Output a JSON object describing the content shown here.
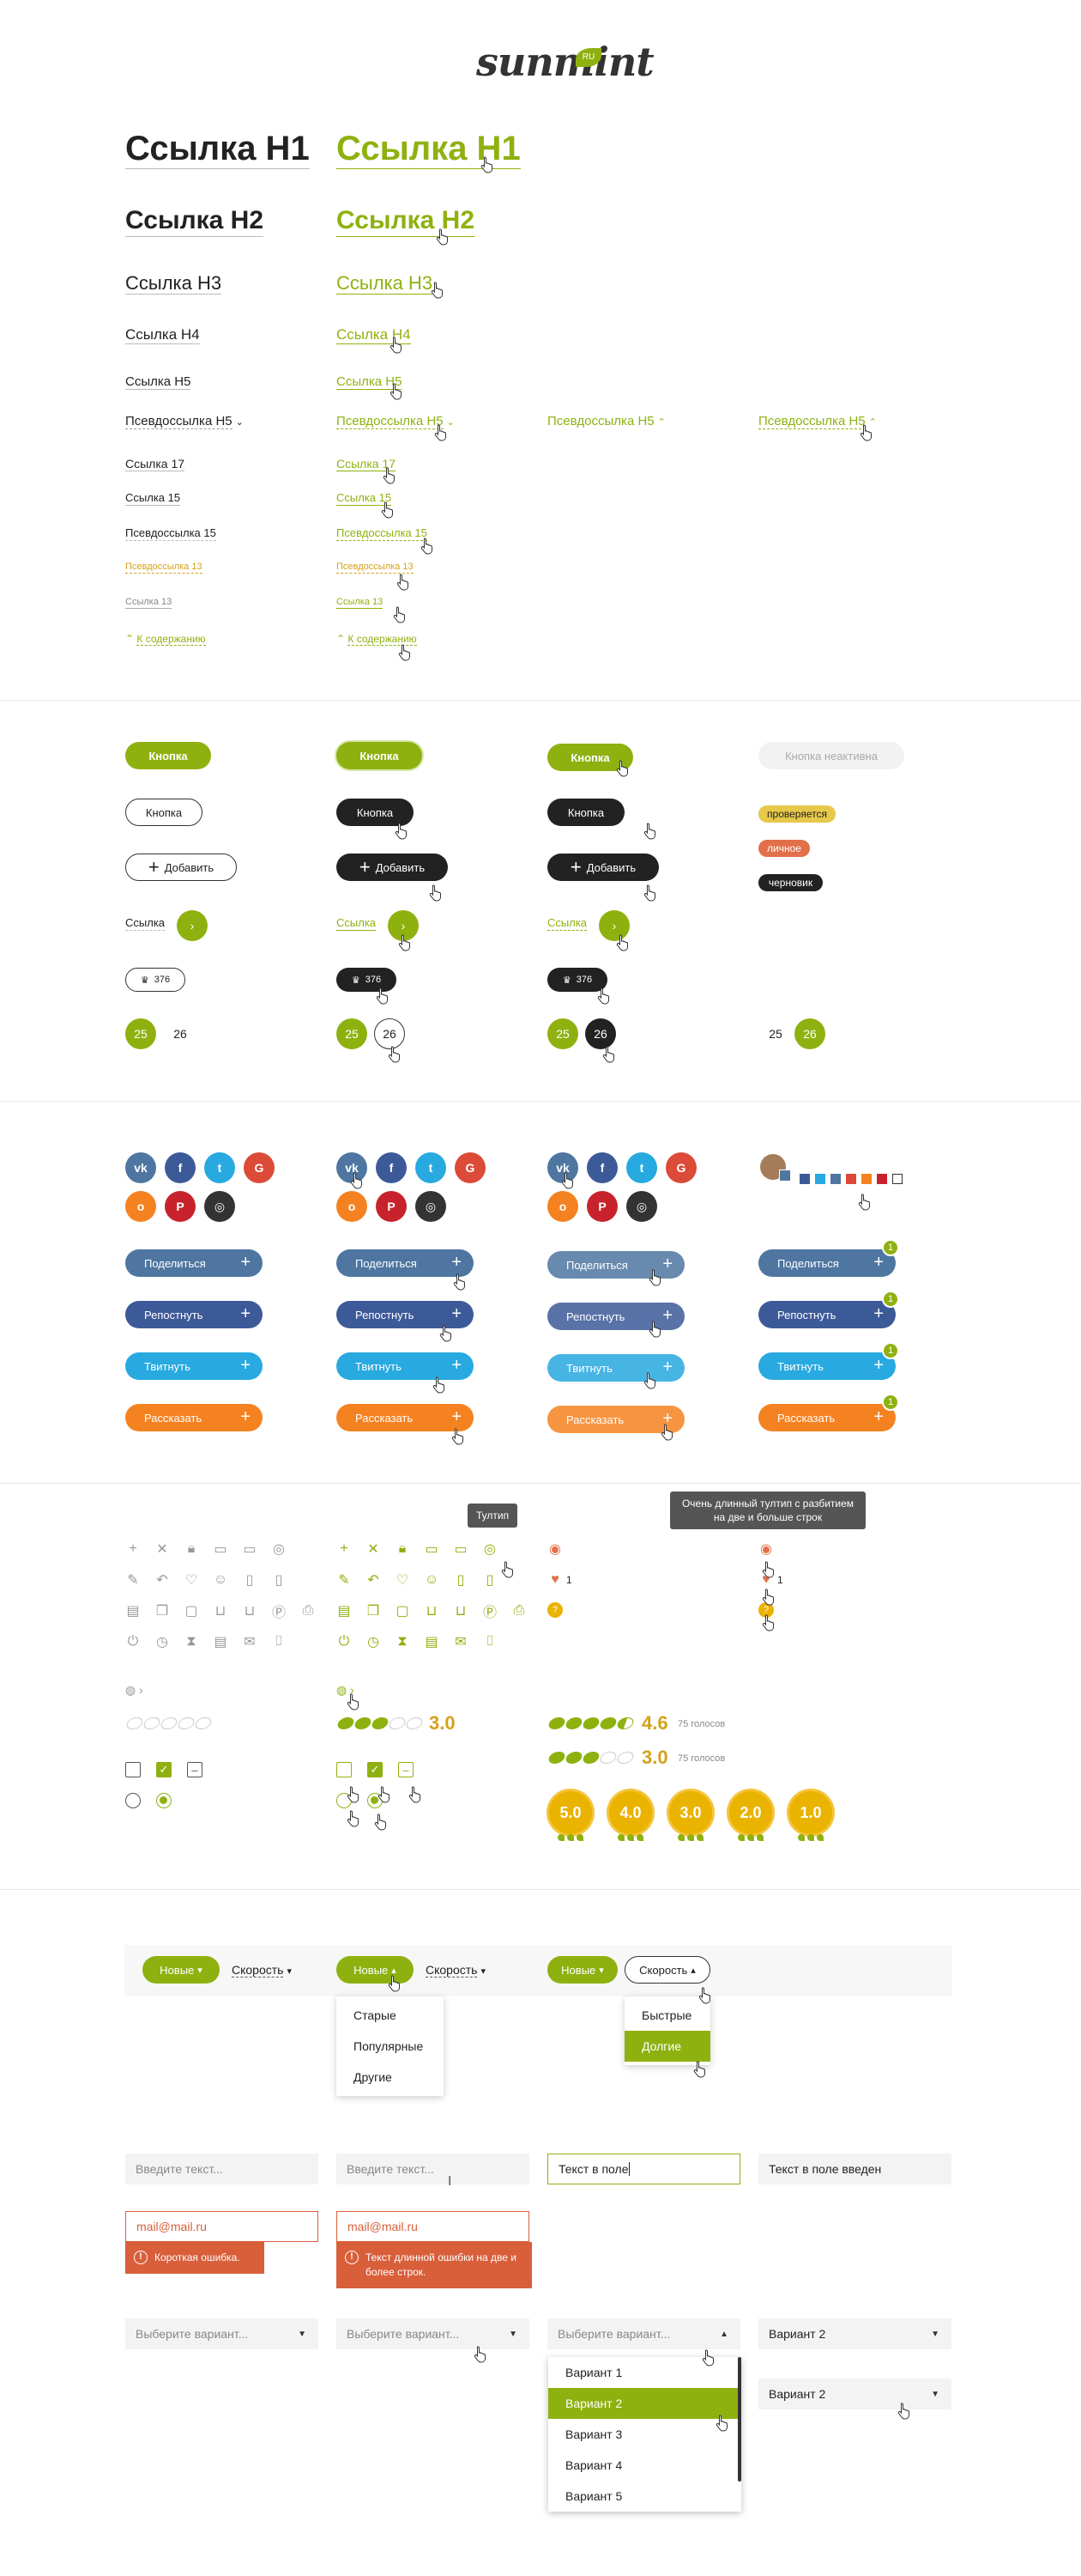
{
  "brand": {
    "logo": "sunmint",
    "logo_badge": "RU"
  },
  "typography": {
    "h1": "Ссылка H1",
    "h2": "Ссылка H2",
    "h3": "Ссылка H3",
    "h4": "Ссылка H4",
    "h5": "Ссылка H5",
    "pseudo_h5": "Псевдоссылка H5",
    "link17": "Ссылка 17",
    "link15": "Ссылка 15",
    "pseudo15": "Псевдоссылка 15",
    "pseudo13": "Псевдоссылка 13",
    "link13": "Ссылка 13",
    "toc": "К содержанию"
  },
  "buttons": {
    "button": "Кнопка",
    "button_disabled": "Кнопка неактивна",
    "add": "Добавить",
    "link": "Ссылка",
    "count": "376",
    "page_a": "25",
    "page_b": "26"
  },
  "tags": {
    "checking": "проверяется",
    "personal": "личное",
    "draft": "черновик"
  },
  "social": {
    "share": "Поделиться",
    "repost": "Репостнуть",
    "tweet": "Твитнуть",
    "tell": "Рассказать",
    "badge": "1"
  },
  "icons": {
    "tooltip": "Тултип",
    "long_tooltip": "Очень длинный тултип с разбитием на две и больше строк",
    "likes": "1"
  },
  "ratings": {
    "r1": "3.0",
    "r2": "4.6",
    "r3": "3.0",
    "votes": "75 голосов",
    "medals": [
      "5.0",
      "4.0",
      "3.0",
      "2.0",
      "1.0"
    ]
  },
  "filters": {
    "new": "Новые",
    "speed": "Скорость",
    "menu1": [
      "Старые",
      "Популярные",
      "Другие"
    ],
    "menu2": [
      "Быстрые",
      "Долгие"
    ]
  },
  "inputs": {
    "placeholder": "Введите текст...",
    "typing": "Текст в поле",
    "entered": "Текст в поле введен",
    "email": "mail@mail.ru",
    "err_short": "Короткая ошибка.",
    "err_long": "Текст длинной ошибки на две и более строк."
  },
  "selects": {
    "placeholder": "Выберите вариант...",
    "value": "Вариант 2",
    "options": [
      "Вариант 1",
      "Вариант 2",
      "Вариант 3",
      "Вариант 4",
      "Вариант 5"
    ]
  },
  "colors": {
    "accent": "#8fb110",
    "dark": "#222222",
    "error": "#d85f3a",
    "gold": "#d4a21c"
  }
}
